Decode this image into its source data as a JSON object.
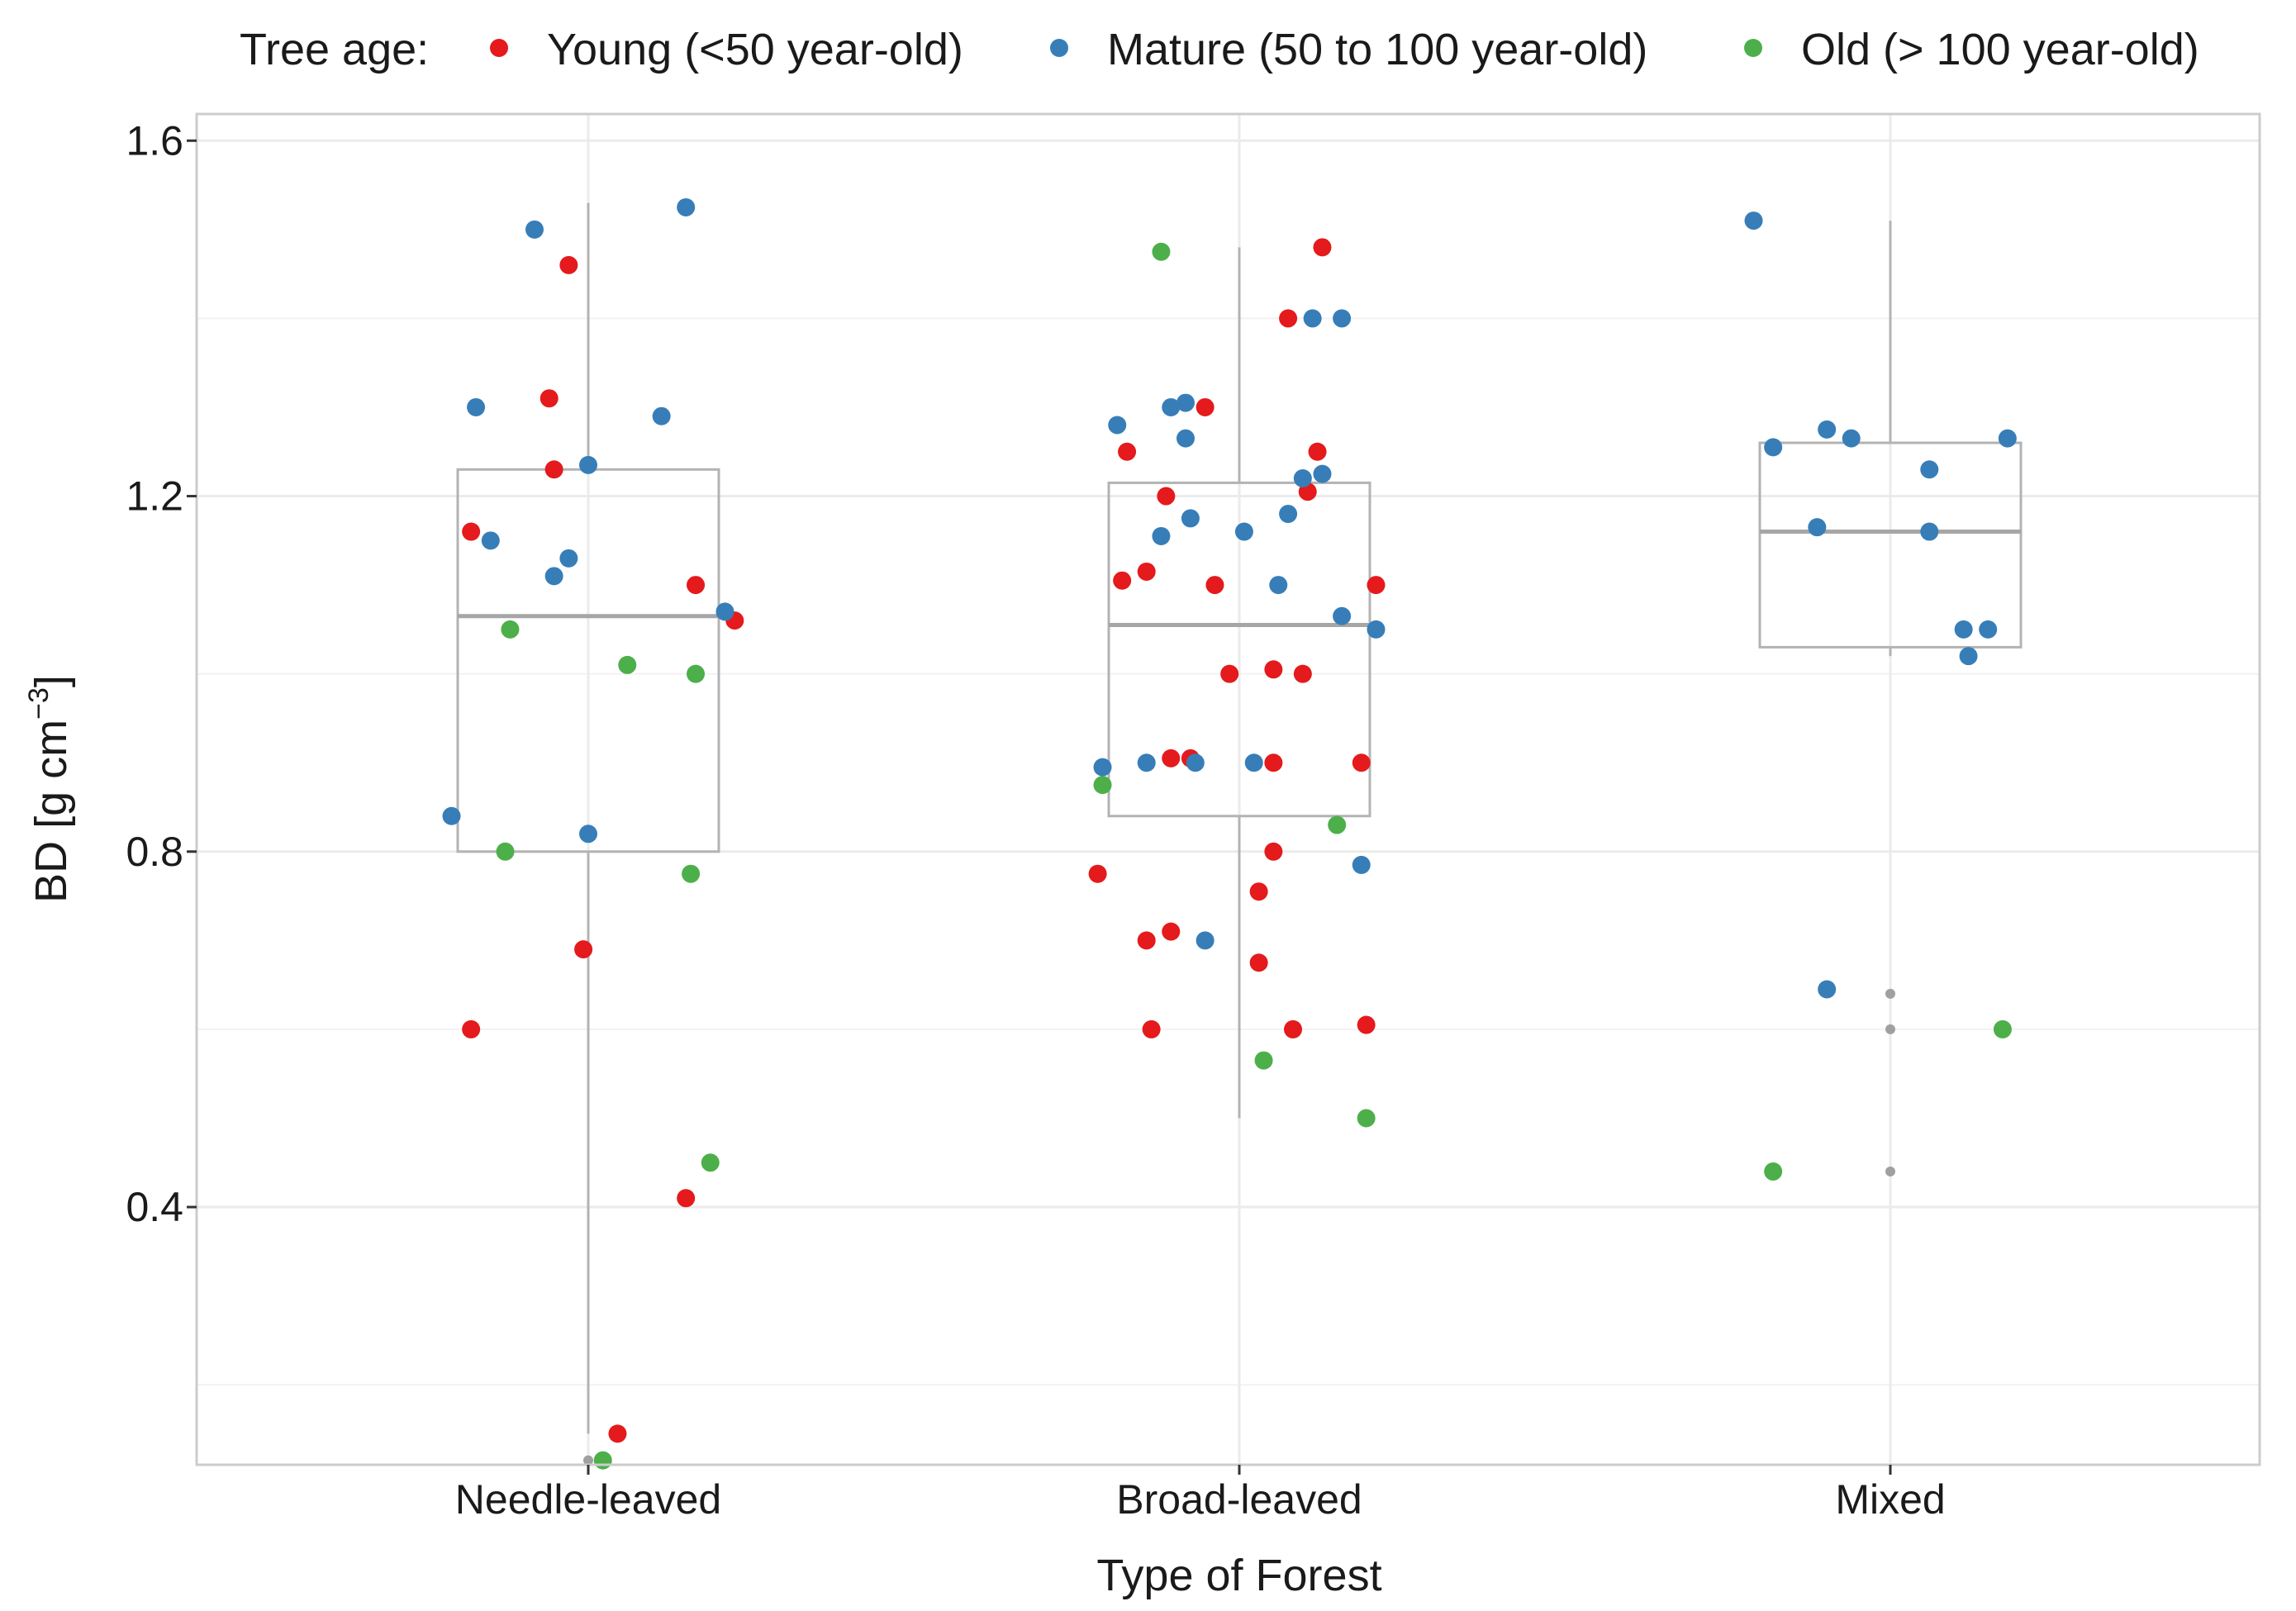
{
  "chart_data": {
    "type": "boxplot-with-jitter",
    "title": "",
    "xlabel": "Type of Forest",
    "ylabel": {
      "main": "BD [g cm",
      "superscript": "−3",
      "close": "]"
    },
    "ylim": [
      0.11,
      1.63
    ],
    "yticks": [
      0.4,
      0.8,
      1.2,
      1.6
    ],
    "ytick_labels": [
      "0.4",
      "0.8",
      "1.2",
      "1.6"
    ],
    "minor_gridlines": [
      0.2,
      0.6,
      1.0,
      1.4
    ],
    "grid": true,
    "legend": {
      "placement": "top",
      "title": "Tree age:",
      "entries": [
        {
          "key": "young",
          "label": "Young (<50 year-old)",
          "color": "#e41a1c"
        },
        {
          "key": "mature",
          "label": "Mature (50 to 100 year-old)",
          "color": "#377eb8"
        },
        {
          "key": "old",
          "label": "Old (> 100 year-old)",
          "color": "#4daf4a"
        }
      ]
    },
    "colors": {
      "box": "#b3b3b3",
      "median": "#a6a6a6",
      "outlier": "#a0a0a0",
      "grid": "#ebebeb",
      "panel_border": "#cccccc"
    },
    "categories": [
      "Needle-leaved",
      "Broad-leaved",
      "Mixed"
    ],
    "boxes": [
      {
        "category": "Needle-leaved",
        "q1": 0.8,
        "median": 1.065,
        "q3": 1.23,
        "whisker_low": 0.145,
        "whisker_high": 1.53,
        "outliers": [
          0.115
        ]
      },
      {
        "category": "Broad-leaved",
        "q1": 0.84,
        "median": 1.055,
        "q3": 1.215,
        "whisker_low": 0.5,
        "whisker_high": 1.48,
        "outliers": []
      },
      {
        "category": "Mixed",
        "q1": 1.03,
        "median": 1.16,
        "q3": 1.26,
        "whisker_low": 1.02,
        "whisker_high": 1.51,
        "outliers": [
          0.64,
          0.6,
          0.44
        ]
      }
    ],
    "points": [
      {
        "category": "Needle-leaved",
        "jitter": -0.24,
        "y": 1.16,
        "age": "young"
      },
      {
        "category": "Needle-leaved",
        "jitter": -0.24,
        "y": 0.6,
        "age": "young"
      },
      {
        "category": "Needle-leaved",
        "jitter": -0.08,
        "y": 1.31,
        "age": "young"
      },
      {
        "category": "Needle-leaved",
        "jitter": -0.07,
        "y": 1.23,
        "age": "young"
      },
      {
        "category": "Needle-leaved",
        "jitter": -0.04,
        "y": 1.46,
        "age": "young"
      },
      {
        "category": "Needle-leaved",
        "jitter": -0.01,
        "y": 0.69,
        "age": "young"
      },
      {
        "category": "Needle-leaved",
        "jitter": 0.06,
        "y": 0.145,
        "age": "young"
      },
      {
        "category": "Needle-leaved",
        "jitter": 0.2,
        "y": 0.41,
        "age": "young"
      },
      {
        "category": "Needle-leaved",
        "jitter": 0.22,
        "y": 1.1,
        "age": "young"
      },
      {
        "category": "Needle-leaved",
        "jitter": 0.3,
        "y": 1.06,
        "age": "young"
      },
      {
        "category": "Needle-leaved",
        "jitter": -0.28,
        "y": 0.84,
        "age": "mature"
      },
      {
        "category": "Needle-leaved",
        "jitter": -0.23,
        "y": 1.3,
        "age": "mature"
      },
      {
        "category": "Needle-leaved",
        "jitter": -0.2,
        "y": 1.15,
        "age": "mature"
      },
      {
        "category": "Needle-leaved",
        "jitter": -0.11,
        "y": 1.5,
        "age": "mature"
      },
      {
        "category": "Needle-leaved",
        "jitter": -0.07,
        "y": 1.11,
        "age": "mature"
      },
      {
        "category": "Needle-leaved",
        "jitter": -0.04,
        "y": 1.13,
        "age": "mature"
      },
      {
        "category": "Needle-leaved",
        "jitter": 0.0,
        "y": 1.235,
        "age": "mature"
      },
      {
        "category": "Needle-leaved",
        "jitter": 0.0,
        "y": 0.82,
        "age": "mature"
      },
      {
        "category": "Needle-leaved",
        "jitter": 0.15,
        "y": 1.29,
        "age": "mature"
      },
      {
        "category": "Needle-leaved",
        "jitter": 0.2,
        "y": 1.525,
        "age": "mature"
      },
      {
        "category": "Needle-leaved",
        "jitter": 0.28,
        "y": 1.07,
        "age": "mature"
      },
      {
        "category": "Needle-leaved",
        "jitter": -0.17,
        "y": 0.8,
        "age": "old"
      },
      {
        "category": "Needle-leaved",
        "jitter": -0.16,
        "y": 1.05,
        "age": "old"
      },
      {
        "category": "Needle-leaved",
        "jitter": 0.03,
        "y": 0.115,
        "age": "old"
      },
      {
        "category": "Needle-leaved",
        "jitter": 0.08,
        "y": 1.01,
        "age": "old"
      },
      {
        "category": "Needle-leaved",
        "jitter": 0.21,
        "y": 0.775,
        "age": "old"
      },
      {
        "category": "Needle-leaved",
        "jitter": 0.22,
        "y": 1.0,
        "age": "old"
      },
      {
        "category": "Needle-leaved",
        "jitter": 0.25,
        "y": 0.45,
        "age": "old"
      },
      {
        "category": "Broad-leaved",
        "jitter": -0.29,
        "y": 0.775,
        "age": "young"
      },
      {
        "category": "Broad-leaved",
        "jitter": -0.24,
        "y": 1.105,
        "age": "young"
      },
      {
        "category": "Broad-leaved",
        "jitter": -0.23,
        "y": 1.25,
        "age": "young"
      },
      {
        "category": "Broad-leaved",
        "jitter": -0.19,
        "y": 1.115,
        "age": "young"
      },
      {
        "category": "Broad-leaved",
        "jitter": -0.19,
        "y": 0.7,
        "age": "young"
      },
      {
        "category": "Broad-leaved",
        "jitter": -0.18,
        "y": 0.6,
        "age": "young"
      },
      {
        "category": "Broad-leaved",
        "jitter": -0.15,
        "y": 1.2,
        "age": "young"
      },
      {
        "category": "Broad-leaved",
        "jitter": -0.14,
        "y": 0.905,
        "age": "young"
      },
      {
        "category": "Broad-leaved",
        "jitter": -0.14,
        "y": 0.71,
        "age": "young"
      },
      {
        "category": "Broad-leaved",
        "jitter": -0.1,
        "y": 0.905,
        "age": "young"
      },
      {
        "category": "Broad-leaved",
        "jitter": -0.07,
        "y": 1.3,
        "age": "young"
      },
      {
        "category": "Broad-leaved",
        "jitter": -0.05,
        "y": 1.1,
        "age": "young"
      },
      {
        "category": "Broad-leaved",
        "jitter": -0.02,
        "y": 1.0,
        "age": "young"
      },
      {
        "category": "Broad-leaved",
        "jitter": 0.04,
        "y": 0.675,
        "age": "young"
      },
      {
        "category": "Broad-leaved",
        "jitter": 0.04,
        "y": 0.755,
        "age": "young"
      },
      {
        "category": "Broad-leaved",
        "jitter": 0.07,
        "y": 0.8,
        "age": "young"
      },
      {
        "category": "Broad-leaved",
        "jitter": 0.07,
        "y": 1.005,
        "age": "young"
      },
      {
        "category": "Broad-leaved",
        "jitter": 0.07,
        "y": 0.9,
        "age": "young"
      },
      {
        "category": "Broad-leaved",
        "jitter": 0.1,
        "y": 1.4,
        "age": "young"
      },
      {
        "category": "Broad-leaved",
        "jitter": 0.11,
        "y": 0.6,
        "age": "young"
      },
      {
        "category": "Broad-leaved",
        "jitter": 0.13,
        "y": 1.0,
        "age": "young"
      },
      {
        "category": "Broad-leaved",
        "jitter": 0.14,
        "y": 1.205,
        "age": "young"
      },
      {
        "category": "Broad-leaved",
        "jitter": 0.16,
        "y": 1.25,
        "age": "young"
      },
      {
        "category": "Broad-leaved",
        "jitter": 0.17,
        "y": 1.48,
        "age": "young"
      },
      {
        "category": "Broad-leaved",
        "jitter": 0.25,
        "y": 0.9,
        "age": "young"
      },
      {
        "category": "Broad-leaved",
        "jitter": 0.26,
        "y": 0.605,
        "age": "young"
      },
      {
        "category": "Broad-leaved",
        "jitter": 0.28,
        "y": 1.1,
        "age": "young"
      },
      {
        "category": "Broad-leaved",
        "jitter": -0.28,
        "y": 0.895,
        "age": "mature"
      },
      {
        "category": "Broad-leaved",
        "jitter": -0.25,
        "y": 1.28,
        "age": "mature"
      },
      {
        "category": "Broad-leaved",
        "jitter": -0.19,
        "y": 0.9,
        "age": "mature"
      },
      {
        "category": "Broad-leaved",
        "jitter": -0.16,
        "y": 1.155,
        "age": "mature"
      },
      {
        "category": "Broad-leaved",
        "jitter": -0.14,
        "y": 1.3,
        "age": "mature"
      },
      {
        "category": "Broad-leaved",
        "jitter": -0.11,
        "y": 1.305,
        "age": "mature"
      },
      {
        "category": "Broad-leaved",
        "jitter": -0.11,
        "y": 1.265,
        "age": "mature"
      },
      {
        "category": "Broad-leaved",
        "jitter": -0.1,
        "y": 1.175,
        "age": "mature"
      },
      {
        "category": "Broad-leaved",
        "jitter": -0.09,
        "y": 0.9,
        "age": "mature"
      },
      {
        "category": "Broad-leaved",
        "jitter": -0.07,
        "y": 0.7,
        "age": "mature"
      },
      {
        "category": "Broad-leaved",
        "jitter": 0.01,
        "y": 1.16,
        "age": "mature"
      },
      {
        "category": "Broad-leaved",
        "jitter": 0.03,
        "y": 0.9,
        "age": "mature"
      },
      {
        "category": "Broad-leaved",
        "jitter": 0.08,
        "y": 1.1,
        "age": "mature"
      },
      {
        "category": "Broad-leaved",
        "jitter": 0.1,
        "y": 1.18,
        "age": "mature"
      },
      {
        "category": "Broad-leaved",
        "jitter": 0.13,
        "y": 1.22,
        "age": "mature"
      },
      {
        "category": "Broad-leaved",
        "jitter": 0.15,
        "y": 1.4,
        "age": "mature"
      },
      {
        "category": "Broad-leaved",
        "jitter": 0.17,
        "y": 1.225,
        "age": "mature"
      },
      {
        "category": "Broad-leaved",
        "jitter": 0.21,
        "y": 1.4,
        "age": "mature"
      },
      {
        "category": "Broad-leaved",
        "jitter": 0.21,
        "y": 1.065,
        "age": "mature"
      },
      {
        "category": "Broad-leaved",
        "jitter": 0.25,
        "y": 0.785,
        "age": "mature"
      },
      {
        "category": "Broad-leaved",
        "jitter": 0.28,
        "y": 1.05,
        "age": "mature"
      },
      {
        "category": "Broad-leaved",
        "jitter": -0.28,
        "y": 0.875,
        "age": "old"
      },
      {
        "category": "Broad-leaved",
        "jitter": -0.16,
        "y": 1.475,
        "age": "old"
      },
      {
        "category": "Broad-leaved",
        "jitter": 0.05,
        "y": 0.565,
        "age": "old"
      },
      {
        "category": "Broad-leaved",
        "jitter": 0.2,
        "y": 0.83,
        "age": "old"
      },
      {
        "category": "Broad-leaved",
        "jitter": 0.26,
        "y": 0.5,
        "age": "old"
      },
      {
        "category": "Mixed",
        "jitter": -0.28,
        "y": 1.51,
        "age": "mature"
      },
      {
        "category": "Mixed",
        "jitter": -0.24,
        "y": 1.255,
        "age": "mature"
      },
      {
        "category": "Mixed",
        "jitter": -0.15,
        "y": 1.165,
        "age": "mature"
      },
      {
        "category": "Mixed",
        "jitter": -0.13,
        "y": 1.275,
        "age": "mature"
      },
      {
        "category": "Mixed",
        "jitter": -0.13,
        "y": 0.645,
        "age": "mature"
      },
      {
        "category": "Mixed",
        "jitter": -0.08,
        "y": 1.265,
        "age": "mature"
      },
      {
        "category": "Mixed",
        "jitter": 0.08,
        "y": 1.23,
        "age": "mature"
      },
      {
        "category": "Mixed",
        "jitter": 0.08,
        "y": 1.16,
        "age": "mature"
      },
      {
        "category": "Mixed",
        "jitter": 0.15,
        "y": 1.05,
        "age": "mature"
      },
      {
        "category": "Mixed",
        "jitter": 0.16,
        "y": 1.02,
        "age": "mature"
      },
      {
        "category": "Mixed",
        "jitter": 0.2,
        "y": 1.05,
        "age": "mature"
      },
      {
        "category": "Mixed",
        "jitter": 0.24,
        "y": 1.265,
        "age": "mature"
      },
      {
        "category": "Mixed",
        "jitter": -0.24,
        "y": 0.44,
        "age": "old"
      },
      {
        "category": "Mixed",
        "jitter": 0.23,
        "y": 0.6,
        "age": "old"
      }
    ]
  }
}
